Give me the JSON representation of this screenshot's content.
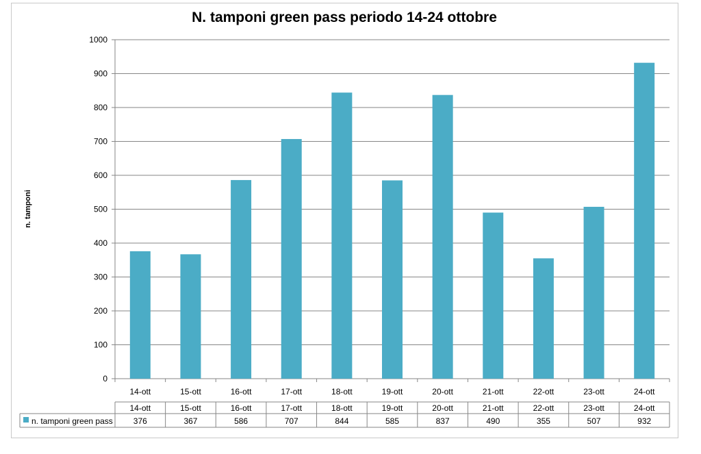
{
  "chart_data": {
    "type": "bar",
    "title": "N. tamponi green pass periodo 14-24 ottobre",
    "ylabel": "n. tamponi",
    "xlabel": "",
    "ylim": [
      0,
      1000
    ],
    "yticks": [
      "0",
      "100",
      "200",
      "300",
      "400",
      "500",
      "600",
      "700",
      "800",
      "900",
      "1000"
    ],
    "grid": true,
    "categories": [
      "14-ott",
      "15-ott",
      "16-ott",
      "17-ott",
      "18-ott",
      "19-ott",
      "20-ott",
      "21-ott",
      "22-ott",
      "23-ott",
      "24-ott"
    ],
    "series": [
      {
        "name": "n. tamponi green pass",
        "color": "#4bacc6",
        "values": [
          376,
          367,
          586,
          707,
          844,
          585,
          837,
          490,
          355,
          507,
          932
        ]
      }
    ],
    "data_table": {
      "header": [
        "14-ott",
        "15-ott",
        "16-ott",
        "17-ott",
        "18-ott",
        "19-ott",
        "20-ott",
        "21-ott",
        "22-ott",
        "23-ott",
        "24-ott"
      ],
      "row_label": "n. tamponi green pass",
      "row_values": [
        "376",
        "367",
        "586",
        "707",
        "844",
        "585",
        "837",
        "490",
        "355",
        "507",
        "932"
      ]
    }
  }
}
